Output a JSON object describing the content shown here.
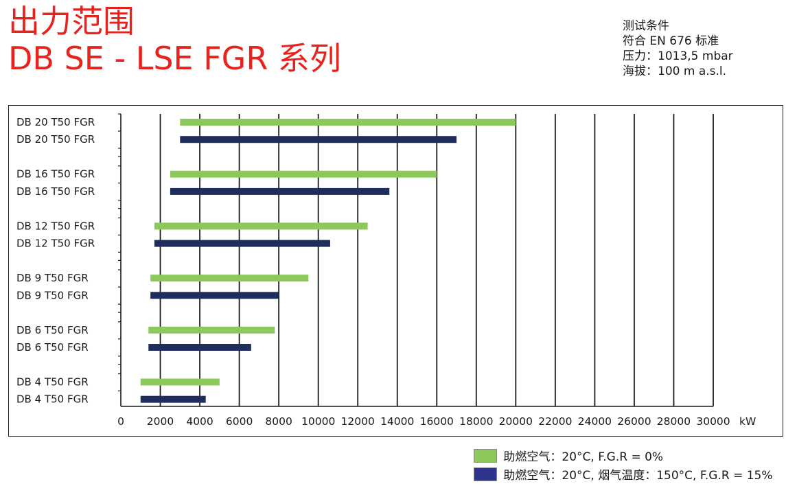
{
  "title": {
    "line1": "出力范围",
    "line2": "DB SE - LSE FGR 系列"
  },
  "conditions": {
    "heading": "测试条件",
    "standard": "符合 EN 676 标准",
    "pressure": "压力：1013,5 mbar",
    "altitude": "海拔：100 m a.s.l."
  },
  "colors": {
    "green": "#8cc95a",
    "navy": "#1f2d5c",
    "title_red": "#e8221c",
    "legend_navy": "#2e3489"
  },
  "chart_data": {
    "type": "bar",
    "orientation": "horizontal",
    "bar_style": "range",
    "unit": "kW",
    "xlim": [
      0,
      30000
    ],
    "x_ticks": [
      0,
      2000,
      4000,
      6000,
      8000,
      10000,
      12000,
      14000,
      16000,
      18000,
      20000,
      22000,
      24000,
      26000,
      28000,
      30000
    ],
    "grid": "vertical",
    "legend_position": "bottom-right",
    "categories": [
      "DB 20  T50 FGR",
      "DB 20  T50 FGR",
      "DB 16  T50 FGR",
      "DB 16  T50 FGR",
      "DB 12  T50 FGR",
      "DB 12  T50 FGR",
      "DB 9  T50 FGR",
      "DB 9  T50 FGR",
      "DB 6  T50 FGR",
      "DB 6  T50 FGR",
      "DB 4  T50 FGR",
      "DB 4  T50 FGR"
    ],
    "series": [
      {
        "name": "助燃空气：20°C,  F.G.R = 0%",
        "color": "#8cc95a",
        "rows": [
          0,
          2,
          4,
          6,
          8,
          10
        ],
        "ranges": [
          [
            3000,
            20000
          ],
          [
            2500,
            16000
          ],
          [
            1700,
            12500
          ],
          [
            1500,
            9500
          ],
          [
            1400,
            7800
          ],
          [
            1000,
            5000
          ]
        ]
      },
      {
        "name": "助燃空气：20°C, 烟气温度：150°C, F.G.R = 15%",
        "color": "#1f2d5c",
        "rows": [
          1,
          3,
          5,
          7,
          9,
          11
        ],
        "ranges": [
          [
            3000,
            17000
          ],
          [
            2500,
            13600
          ],
          [
            1700,
            10600
          ],
          [
            1500,
            8000
          ],
          [
            1400,
            6600
          ],
          [
            1000,
            4300
          ]
        ]
      }
    ]
  }
}
